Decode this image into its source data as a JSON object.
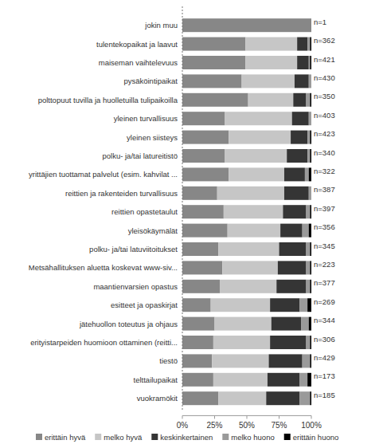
{
  "chart_data": {
    "type": "bar",
    "orientation": "horizontal",
    "stacked": true,
    "legend": "bottom",
    "xlim": [
      0,
      100
    ],
    "xticks": [
      {
        "value": 0,
        "label": "0%"
      },
      {
        "value": 25,
        "label": "25%"
      },
      {
        "value": 50,
        "label": "50%"
      },
      {
        "value": 75,
        "label": "75%"
      },
      {
        "value": 100,
        "label": "100%"
      }
    ],
    "categories": [
      "jokin muu",
      "tulentekopaikat ja laavut",
      "maiseman vaihtelevuus",
      "pysäköintipaikat",
      "polttopuut tuvilla ja huolletuilla tulipaikoilla",
      "yleinen turvallisuus",
      "yleinen siisteys",
      "polku- ja/tai latureitistö",
      "yrittäjien tuottamat palvelut (esim. kahvilat ...",
      "reittien ja rakenteiden turvallisuus",
      "reittien opastetaulut",
      "yleisökäymälät",
      "polku- ja/tai latuviitoitukset",
      "Metsähallituksen aluetta koskevat www-siv...",
      "maantienvarsien opastus",
      "esitteet ja opaskirjat",
      "jätehuollon toteutus ja ohjaus",
      "erityistarpeiden huomioon ottaminen (reitti...",
      "tiestö",
      "telttailupaikat",
      "vuokramökit"
    ],
    "annotations": [
      "n=1",
      "n=362",
      "n=421",
      "n=430",
      "n=350",
      "n=403",
      "n=423",
      "n=340",
      "n=322",
      "n=387",
      "n=397",
      "n=356",
      "n=345",
      "n=223",
      "n=377",
      "n=269",
      "n=344",
      "n=306",
      "n=429",
      "n=173",
      "n=185"
    ],
    "series": [
      {
        "name": "erittäin hyvä",
        "color": "#878787",
        "values": [
          100,
          49,
          49,
          46,
          51,
          33,
          36,
          33,
          36,
          27,
          32,
          35,
          28,
          31,
          29,
          22,
          25,
          24,
          23,
          24,
          28
        ]
      },
      {
        "name": "melko hyvä",
        "color": "#c6c6c6",
        "values": [
          0,
          40,
          40,
          41,
          35,
          52,
          48,
          48,
          43,
          52,
          46,
          41,
          47,
          43,
          44,
          46,
          44,
          44,
          44,
          42,
          37
        ]
      },
      {
        "name": "keskinkertainen",
        "color": "#353535",
        "values": [
          0,
          8,
          9,
          11,
          10,
          13,
          13,
          16,
          16,
          19,
          18,
          17,
          21,
          22,
          23,
          23,
          23,
          28,
          26,
          25,
          26
        ]
      },
      {
        "name": "melko huono",
        "color": "#9a9a9a",
        "values": [
          0,
          2,
          1,
          2,
          3,
          2,
          2,
          2,
          3,
          2,
          3,
          5,
          3,
          3,
          3,
          6,
          6,
          3,
          6,
          6,
          8
        ]
      },
      {
        "name": "erittäin huono",
        "color": "#000000",
        "values": [
          0,
          1,
          1,
          0,
          1,
          0,
          1,
          1,
          2,
          0,
          1,
          2,
          1,
          1,
          1,
          3,
          2,
          1,
          1,
          3,
          1
        ]
      }
    ]
  }
}
